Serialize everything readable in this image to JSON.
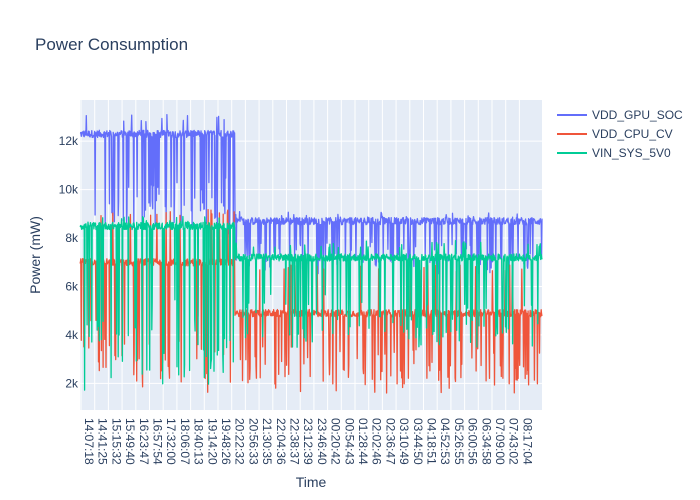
{
  "chart_data": {
    "type": "line",
    "title": "Power Consumption",
    "xlabel": "Time",
    "ylabel": "Power (mW)",
    "ylim": [
      900,
      13700
    ],
    "y_ticks": [
      2000,
      4000,
      6000,
      8000,
      10000,
      12000
    ],
    "y_tick_labels": [
      "2k",
      "4k",
      "6k",
      "8k",
      "10k",
      "12k"
    ],
    "x_tick_labels": [
      "14:07:18",
      "14:41:25",
      "15:15:32",
      "15:49:40",
      "16:23:47",
      "16:57:54",
      "17:32:00",
      "18:06:07",
      "18:40:13",
      "19:14:20",
      "19:48:26",
      "20:22:32",
      "20:56:33",
      "21:30:35",
      "22:04:36",
      "22:38:37",
      "23:12:39",
      "23:46:40",
      "00:20:42",
      "00:54:43",
      "01:28:44",
      "02:02:46",
      "02:36:47",
      "03:10:49",
      "03:44:50",
      "04:18:51",
      "04:52:53",
      "05:26:55",
      "06:00:56",
      "06:34:58",
      "07:09:00",
      "07:43:02",
      "08:17:04"
    ],
    "grid": true,
    "legend_position": "top-right",
    "series": [
      {
        "name": "VDD_GPU_SOC",
        "color": "#636efa",
        "phases": [
          {
            "from": 0,
            "to": 0.335,
            "base": 12300,
            "low": 8000,
            "high": 13100
          },
          {
            "from": 0.335,
            "to": 1.0,
            "base": 8700,
            "low": 6500,
            "high": 9100
          }
        ]
      },
      {
        "name": "VDD_CPU_CV",
        "color": "#ef553b",
        "phases": [
          {
            "from": 0,
            "to": 0.335,
            "base": 7000,
            "low": 1600,
            "high": 9200
          },
          {
            "from": 0.335,
            "to": 1.0,
            "base": 4900,
            "low": 1600,
            "high": 6900
          }
        ]
      },
      {
        "name": "VIN_SYS_5V0",
        "color": "#00cc96",
        "phases": [
          {
            "from": 0,
            "to": 0.335,
            "base": 8500,
            "low": 1600,
            "high": 8900
          },
          {
            "from": 0.335,
            "to": 1.0,
            "base": 7200,
            "low": 3400,
            "high": 7900
          }
        ]
      }
    ]
  }
}
